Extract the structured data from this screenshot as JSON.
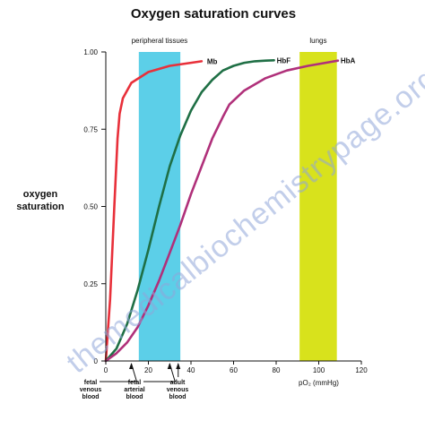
{
  "watermark": "themedicalbiochemistrypage.org",
  "chart_data": {
    "type": "line",
    "title": "Oxygen saturation curves",
    "ylabel": [
      "oxygen",
      "saturation"
    ],
    "xlabel": "pO₂ (mmHg)",
    "xlim": [
      0,
      120
    ],
    "ylim": [
      0,
      1
    ],
    "x_ticks": [
      0,
      20,
      40,
      60,
      80,
      100,
      120
    ],
    "x_tick_labels": [
      "0",
      "20",
      "40",
      "60",
      "80",
      "100",
      "120"
    ],
    "y_ticks": [
      0,
      0.25,
      0.5,
      0.75,
      1.0
    ],
    "y_tick_labels": [
      "0",
      "0.25",
      "0.50",
      "0.75",
      "1.00"
    ],
    "grid": false,
    "bands": [
      {
        "label": "peripheral tissues",
        "x_range": [
          15.5,
          35
        ],
        "color": "#5ccfe8"
      },
      {
        "label": "lungs",
        "x_range": [
          91,
          108.5
        ],
        "color": "#d8e21c"
      }
    ],
    "series": [
      {
        "name": "Mb",
        "color": "#e8303a",
        "x": [
          0,
          2,
          4,
          5.5,
          6.5,
          8,
          12,
          20,
          30,
          40,
          45
        ],
        "y": [
          0,
          0.2,
          0.5,
          0.72,
          0.8,
          0.85,
          0.9,
          0.935,
          0.955,
          0.965,
          0.97
        ]
      },
      {
        "name": "HbF",
        "color": "#1f6f45",
        "x": [
          0,
          5,
          10,
          15,
          20,
          25,
          30,
          35,
          40,
          45,
          50,
          55,
          60,
          65,
          70,
          75,
          79
        ],
        "y": [
          0,
          0.04,
          0.12,
          0.23,
          0.36,
          0.5,
          0.63,
          0.73,
          0.81,
          0.87,
          0.91,
          0.94,
          0.955,
          0.965,
          0.97,
          0.972,
          0.973
        ]
      },
      {
        "name": "HbA",
        "color": "#b0307a",
        "x": [
          0,
          5,
          10,
          15,
          20,
          25,
          30,
          35,
          40,
          45,
          50,
          55,
          58,
          65,
          75,
          85,
          95,
          105,
          109
        ],
        "y": [
          0,
          0.025,
          0.06,
          0.11,
          0.18,
          0.26,
          0.35,
          0.44,
          0.54,
          0.63,
          0.72,
          0.79,
          0.83,
          0.875,
          0.915,
          0.94,
          0.955,
          0.967,
          0.972
        ]
      }
    ],
    "annotations": [
      {
        "lines": [
          "fetal",
          "venous",
          "blood"
        ],
        "x": 12
      },
      {
        "lines": [
          "fetal",
          "arterial",
          "blood"
        ],
        "x": 30
      },
      {
        "lines": [
          "adult",
          "venous",
          "blood"
        ],
        "x": 34
      }
    ]
  }
}
